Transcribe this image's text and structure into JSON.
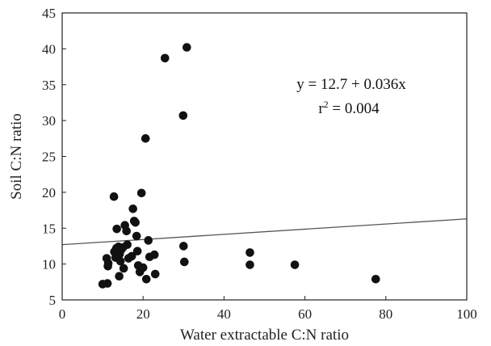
{
  "chart_data": {
    "type": "scatter",
    "title": "",
    "xlabel": "Water extractable C:N ratio",
    "ylabel": "Soil C:N ratio",
    "xlim": [
      0,
      100
    ],
    "ylim": [
      5,
      45
    ],
    "xticks": [
      0,
      20,
      40,
      60,
      80,
      100
    ],
    "yticks": [
      5,
      10,
      15,
      20,
      25,
      30,
      35,
      40,
      45
    ],
    "grid": false,
    "points": [
      {
        "x": 10.0,
        "y": 7.2
      },
      {
        "x": 11.2,
        "y": 7.3
      },
      {
        "x": 11.0,
        "y": 10.8
      },
      {
        "x": 11.3,
        "y": 9.7
      },
      {
        "x": 11.4,
        "y": 10.1
      },
      {
        "x": 12.8,
        "y": 19.4
      },
      {
        "x": 12.9,
        "y": 11.7
      },
      {
        "x": 13.2,
        "y": 10.9
      },
      {
        "x": 13.4,
        "y": 12.2
      },
      {
        "x": 13.5,
        "y": 14.9
      },
      {
        "x": 13.7,
        "y": 11.1
      },
      {
        "x": 13.9,
        "y": 12.4
      },
      {
        "x": 14.1,
        "y": 8.3
      },
      {
        "x": 14.2,
        "y": 11.4
      },
      {
        "x": 14.4,
        "y": 10.4
      },
      {
        "x": 14.6,
        "y": 12.0
      },
      {
        "x": 15.0,
        "y": 12.3
      },
      {
        "x": 15.2,
        "y": 9.4
      },
      {
        "x": 15.5,
        "y": 15.4
      },
      {
        "x": 15.9,
        "y": 14.6
      },
      {
        "x": 16.1,
        "y": 12.7
      },
      {
        "x": 16.4,
        "y": 10.8
      },
      {
        "x": 17.2,
        "y": 11.1
      },
      {
        "x": 17.5,
        "y": 17.7
      },
      {
        "x": 17.8,
        "y": 16.0
      },
      {
        "x": 18.1,
        "y": 15.8
      },
      {
        "x": 18.4,
        "y": 13.9
      },
      {
        "x": 18.6,
        "y": 11.8
      },
      {
        "x": 18.8,
        "y": 9.8
      },
      {
        "x": 19.2,
        "y": 8.9
      },
      {
        "x": 19.6,
        "y": 19.9
      },
      {
        "x": 20.0,
        "y": 9.5
      },
      {
        "x": 20.6,
        "y": 27.5
      },
      {
        "x": 20.8,
        "y": 7.9
      },
      {
        "x": 21.3,
        "y": 13.3
      },
      {
        "x": 21.6,
        "y": 11.0
      },
      {
        "x": 22.8,
        "y": 11.3
      },
      {
        "x": 23.0,
        "y": 8.6
      },
      {
        "x": 25.4,
        "y": 38.7
      },
      {
        "x": 29.9,
        "y": 30.7
      },
      {
        "x": 30.0,
        "y": 12.5
      },
      {
        "x": 30.2,
        "y": 10.3
      },
      {
        "x": 30.8,
        "y": 40.2
      },
      {
        "x": 46.4,
        "y": 11.6
      },
      {
        "x": 46.4,
        "y": 9.9
      },
      {
        "x": 57.5,
        "y": 9.9
      },
      {
        "x": 77.5,
        "y": 7.9
      }
    ],
    "regression": {
      "intercept": 12.7,
      "slope": 0.036,
      "x_range": [
        0,
        100
      ]
    },
    "annotations": {
      "equation": "y = 12.7 + 0.036x",
      "r2_prefix": "r",
      "r2_sup": "2",
      "r2_suffix": " = 0.004"
    },
    "colors": {
      "points": "#111111",
      "line": "#555555",
      "axis": "#222222"
    }
  }
}
